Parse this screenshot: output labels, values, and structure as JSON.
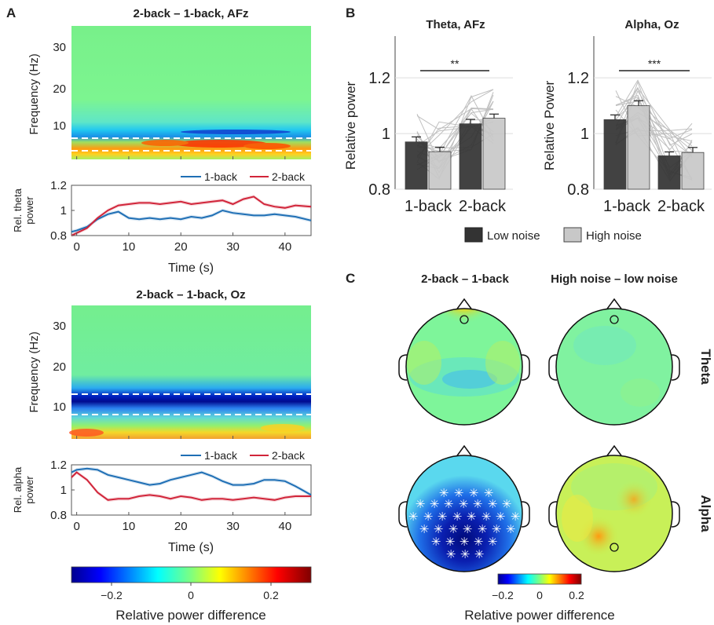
{
  "panel_labels": {
    "a": "A",
    "b": "B",
    "c": "C"
  },
  "colors": {
    "one_back": "#1f6fb5",
    "two_back": "#d1253a",
    "low_noise": "#333333",
    "high_noise": "#c8c8c8"
  },
  "chart_data": [
    {
      "type": "heatmap",
      "title": "2-back – 1-back, AFz",
      "ylabel": "Frequency (Hz)",
      "y_ticks": [
        "10",
        "20",
        "30"
      ],
      "ylim": [
        2,
        35
      ],
      "xlim": [
        -1,
        45
      ],
      "band_hz": [
        4,
        7
      ],
      "description_values": {
        "theta_band_diff": 0.2,
        "alpha_band_diff": -0.05
      }
    },
    {
      "type": "line",
      "xlabel": "Time (s)",
      "ylabel_line1": "Rel. theta",
      "ylabel_line2": "power",
      "x_ticks": [
        "0",
        "10",
        "20",
        "30",
        "40"
      ],
      "y_ticks": [
        "0.8",
        "1",
        "1.2"
      ],
      "xlim": [
        -1,
        45
      ],
      "ylim": [
        0.8,
        1.2
      ],
      "series": [
        {
          "name": "1-back",
          "x": [
            -1,
            0,
            2,
            4,
            6,
            8,
            10,
            12,
            14,
            16,
            18,
            20,
            22,
            24,
            26,
            28,
            30,
            32,
            34,
            36,
            38,
            40,
            42,
            45
          ],
          "values": [
            0.83,
            0.84,
            0.87,
            0.93,
            0.97,
            0.99,
            0.94,
            0.93,
            0.94,
            0.93,
            0.94,
            0.93,
            0.95,
            0.94,
            0.96,
            1.0,
            0.98,
            0.97,
            0.96,
            0.96,
            0.97,
            0.96,
            0.95,
            0.92
          ]
        },
        {
          "name": "2-back",
          "x": [
            -1,
            0,
            2,
            4,
            6,
            8,
            10,
            12,
            14,
            16,
            18,
            20,
            22,
            24,
            26,
            28,
            30,
            32,
            34,
            36,
            38,
            40,
            42,
            45
          ],
          "values": [
            0.8,
            0.82,
            0.86,
            0.94,
            1.0,
            1.04,
            1.05,
            1.06,
            1.06,
            1.05,
            1.06,
            1.07,
            1.05,
            1.06,
            1.07,
            1.08,
            1.05,
            1.09,
            1.11,
            1.05,
            1.03,
            1.02,
            1.04,
            1.03
          ]
        }
      ]
    },
    {
      "type": "heatmap",
      "title": "2-back – 1-back, Oz",
      "ylabel": "Frequency (Hz)",
      "y_ticks": [
        "10",
        "20",
        "30"
      ],
      "ylim": [
        2,
        35
      ],
      "xlim": [
        -1,
        45
      ],
      "band_hz": [
        8,
        13
      ],
      "description_values": {
        "alpha_band_diff": -0.3
      }
    },
    {
      "type": "line",
      "xlabel": "Time (s)",
      "ylabel_line1": "Rel. alpha",
      "ylabel_line2": "power",
      "x_ticks": [
        "0",
        "10",
        "20",
        "30",
        "40"
      ],
      "y_ticks": [
        "0.8",
        "1",
        "1.2"
      ],
      "xlim": [
        -1,
        45
      ],
      "ylim": [
        0.8,
        1.2
      ],
      "series": [
        {
          "name": "1-back",
          "x": [
            -1,
            0,
            2,
            4,
            6,
            8,
            10,
            12,
            14,
            16,
            18,
            20,
            22,
            24,
            26,
            28,
            30,
            32,
            34,
            36,
            38,
            40,
            42,
            45
          ],
          "values": [
            1.14,
            1.16,
            1.17,
            1.16,
            1.12,
            1.1,
            1.08,
            1.06,
            1.04,
            1.05,
            1.08,
            1.1,
            1.12,
            1.14,
            1.11,
            1.07,
            1.04,
            1.04,
            1.05,
            1.08,
            1.08,
            1.07,
            1.03,
            0.96
          ]
        },
        {
          "name": "2-back",
          "x": [
            -1,
            0,
            2,
            4,
            6,
            8,
            10,
            12,
            14,
            16,
            18,
            20,
            22,
            24,
            26,
            28,
            30,
            32,
            34,
            36,
            38,
            40,
            42,
            45
          ],
          "values": [
            1.1,
            1.14,
            1.08,
            0.98,
            0.92,
            0.93,
            0.93,
            0.95,
            0.96,
            0.95,
            0.93,
            0.95,
            0.94,
            0.92,
            0.93,
            0.93,
            0.92,
            0.93,
            0.94,
            0.93,
            0.92,
            0.94,
            0.95,
            0.95
          ]
        }
      ]
    },
    {
      "type": "colorbar",
      "xlabel": "Relative power difference",
      "ticks": [
        "−0.2",
        "0",
        "0.2"
      ],
      "range": [
        -0.3,
        0.3
      ]
    },
    {
      "type": "bar",
      "title": "Theta, AFz",
      "ylabel": "Relative power",
      "categories": [
        "1-back",
        "2-back"
      ],
      "y_ticks": [
        "0.8",
        "1",
        "1.2"
      ],
      "ylim": [
        0.8,
        1.35
      ],
      "series": [
        {
          "name": "Low noise",
          "values": [
            0.97,
            1.035
          ],
          "sem": [
            0.018,
            0.016
          ]
        },
        {
          "name": "High noise",
          "values": [
            0.935,
            1.055
          ],
          "sem": [
            0.016,
            0.015
          ]
        }
      ],
      "significance": "**"
    },
    {
      "type": "bar",
      "title": "Alpha, Oz",
      "ylabel": "Relative Power",
      "categories": [
        "1-back",
        "2-back"
      ],
      "y_ticks": [
        "0.8",
        "1",
        "1.2"
      ],
      "ylim": [
        0.8,
        1.35
      ],
      "series": [
        {
          "name": "Low noise",
          "values": [
            1.05,
            0.92
          ],
          "sem": [
            0.017,
            0.014
          ]
        },
        {
          "name": "High noise",
          "values": [
            1.1,
            0.932
          ],
          "sem": [
            0.018,
            0.018
          ]
        }
      ],
      "significance": "***"
    },
    {
      "type": "heatmap",
      "subtype": "topography",
      "column_titles": [
        "2-back – 1-back",
        "High noise – low noise"
      ],
      "row_labels": [
        "Theta",
        "Alpha"
      ]
    },
    {
      "type": "colorbar",
      "xlabel": "Relative power difference",
      "ticks": [
        "−0.2",
        "0",
        "0.2"
      ],
      "range": [
        -0.2,
        0.2
      ]
    }
  ]
}
